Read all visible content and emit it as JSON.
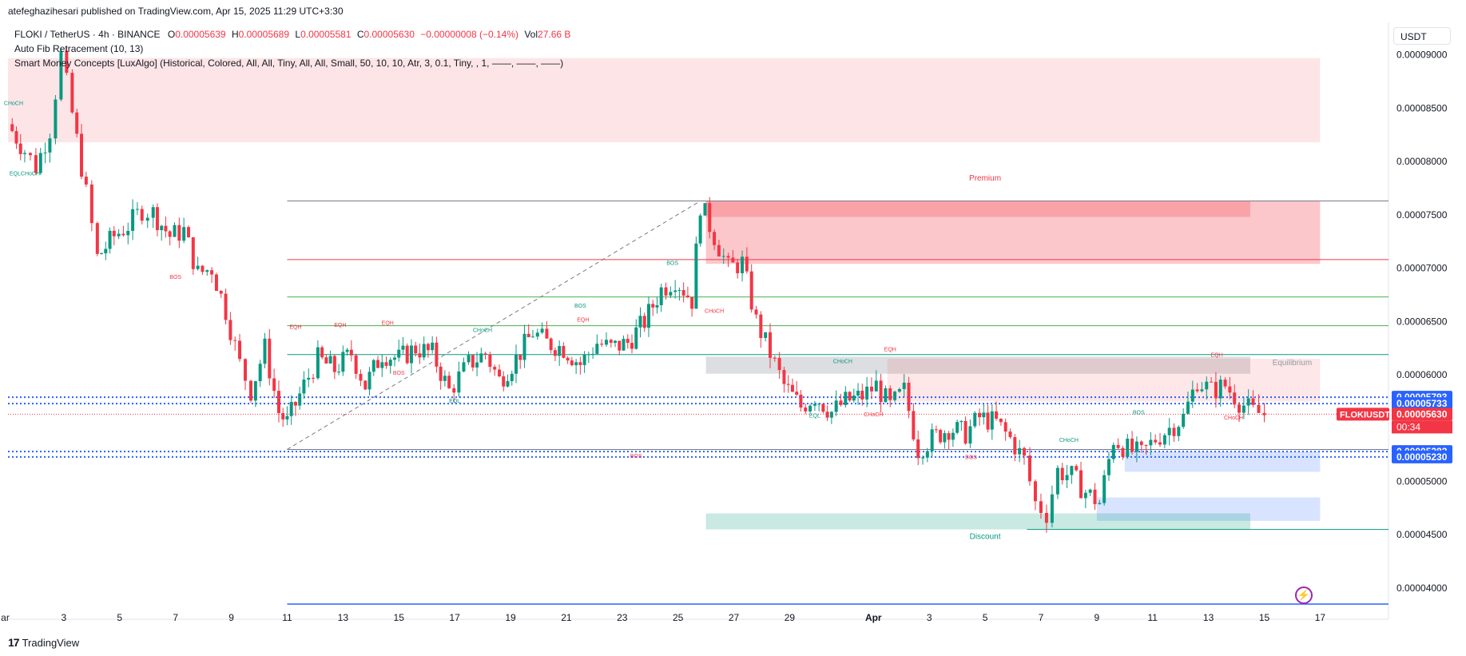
{
  "header": {
    "published": "atefeghazihesari published on TradingView.com, Apr 15, 2025 11:29 UTC+3:30"
  },
  "legend": {
    "symbol": "FLOKI / TetherUS · 4h · BINANCE",
    "o_label": "O",
    "o": "0.00005639",
    "h_label": "H",
    "h": "0.00005689",
    "l_label": "L",
    "l": "0.00005581",
    "c_label": "C",
    "c": "0.00005630",
    "change": "−0.00000008 (−0.14%)",
    "vol_label": "Vol",
    "vol": "27.66 B",
    "indicator1": "Auto Fib Retracement (10, 13)",
    "indicator2": "Smart Money Concepts [LuxAlgo] (Historical, Colored, All, All, Tiny, All, All, Small, 50, 10, 10, Atr, 3, 0.1, Tiny, , 1, ——, ——, ——)"
  },
  "currency": "USDT",
  "footer": {
    "brand": "TradingView",
    "mark": "17"
  },
  "colors": {
    "up": "#089981",
    "down": "#f23645",
    "premium": "#f23645",
    "discount": "#089981",
    "fib_gray": "#787b86",
    "fib_red": "#f23645",
    "fib_green": "#4caf50",
    "fib_teal": "#089981",
    "blue": "#2962ff",
    "price_label": "#f23645"
  },
  "chart_data": {
    "type": "candlestick",
    "ylim": [
      3.82e-05,
      9.08e-05
    ],
    "y_ticks": [
      "0.00009000",
      "0.00008500",
      "0.00008000",
      "0.00007500",
      "0.00007000",
      "0.00006500",
      "0.00006000",
      "0.00005500",
      "0.00005000",
      "0.00004500",
      "0.00004000"
    ],
    "y_tick_values": [
      9e-05,
      8.5e-05,
      8e-05,
      7.5e-05,
      7e-05,
      6.5e-05,
      6e-05,
      5.5e-05,
      5e-05,
      4.5e-05,
      4e-05
    ],
    "x_ticks": [
      {
        "label": "ar",
        "day": 0.9
      },
      {
        "label": "3",
        "day": 3
      },
      {
        "label": "5",
        "day": 5
      },
      {
        "label": "7",
        "day": 7
      },
      {
        "label": "9",
        "day": 9
      },
      {
        "label": "11",
        "day": 11
      },
      {
        "label": "13",
        "day": 13
      },
      {
        "label": "15",
        "day": 15
      },
      {
        "label": "17",
        "day": 17
      },
      {
        "label": "19",
        "day": 19
      },
      {
        "label": "21",
        "day": 21
      },
      {
        "label": "23",
        "day": 23
      },
      {
        "label": "25",
        "day": 25
      },
      {
        "label": "27",
        "day": 27
      },
      {
        "label": "29",
        "day": 29
      },
      {
        "label": "Apr",
        "day": 32
      },
      {
        "label": "3",
        "day": 34
      },
      {
        "label": "5",
        "day": 36
      },
      {
        "label": "7",
        "day": 38
      },
      {
        "label": "9",
        "day": 40
      },
      {
        "label": "11",
        "day": 42
      },
      {
        "label": "13",
        "day": 44
      },
      {
        "label": "15",
        "day": 46
      },
      {
        "label": "17",
        "day": 48
      }
    ],
    "x_domain": [
      1.0,
      48.0
    ],
    "close_path": [
      [
        1.0,
        8.35e-05
      ],
      [
        1.6,
        8.1e-05
      ],
      [
        2.0,
        7.95e-05
      ],
      [
        2.5,
        8.3e-05
      ],
      [
        2.9,
        9e-05
      ],
      [
        3.3,
        8.45e-05
      ],
      [
        3.8,
        7.7e-05
      ],
      [
        4.2,
        7.1e-05
      ],
      [
        4.8,
        7.3e-05
      ],
      [
        5.3,
        7.4e-05
      ],
      [
        5.8,
        7.55e-05
      ],
      [
        6.2,
        7.52e-05
      ],
      [
        6.8,
        7.3e-05
      ],
      [
        7.3,
        7.35e-05
      ],
      [
        7.8,
        6.95e-05
      ],
      [
        8.3,
        7e-05
      ],
      [
        8.8,
        6.6e-05
      ],
      [
        9.3,
        6.1e-05
      ],
      [
        9.7,
        5.85e-05
      ],
      [
        10.2,
        6.25e-05
      ],
      [
        10.7,
        5.65e-05
      ],
      [
        11.0,
        5.55e-05
      ],
      [
        11.6,
        5.9e-05
      ],
      [
        12.1,
        6.15e-05
      ],
      [
        12.7,
        6.05e-05
      ],
      [
        13.3,
        6.2e-05
      ],
      [
        13.8,
        5.9e-05
      ],
      [
        14.4,
        6.2e-05
      ],
      [
        15.0,
        6.15e-05
      ],
      [
        15.6,
        6.25e-05
      ],
      [
        16.2,
        6.2e-05
      ],
      [
        16.8,
        5.85e-05
      ],
      [
        17.5,
        6.1e-05
      ],
      [
        18.1,
        6.2e-05
      ],
      [
        18.6,
        5.95e-05
      ],
      [
        19.2,
        6.15e-05
      ],
      [
        19.8,
        6.4e-05
      ],
      [
        20.3,
        6.3e-05
      ],
      [
        20.9,
        6.25e-05
      ],
      [
        21.5,
        6.1e-05
      ],
      [
        22.1,
        6.3e-05
      ],
      [
        22.6,
        6.25e-05
      ],
      [
        23.2,
        6.3e-05
      ],
      [
        23.8,
        6.5e-05
      ],
      [
        24.4,
        6.8e-05
      ],
      [
        24.9,
        6.9e-05
      ],
      [
        25.5,
        6.7e-05
      ],
      [
        25.8,
        7.6e-05
      ],
      [
        26.3,
        7.3e-05
      ],
      [
        26.8,
        7e-05
      ],
      [
        27.3,
        7.05e-05
      ],
      [
        27.8,
        6.5e-05
      ],
      [
        28.3,
        6.2e-05
      ],
      [
        28.8,
        5.9e-05
      ],
      [
        29.4,
        5.7e-05
      ],
      [
        29.9,
        5.8e-05
      ],
      [
        30.5,
        5.65e-05
      ],
      [
        31.0,
        5.75e-05
      ],
      [
        31.6,
        5.8e-05
      ],
      [
        32.1,
        5.9e-05
      ],
      [
        32.6,
        5.7e-05
      ],
      [
        33.1,
        5.85e-05
      ],
      [
        33.6,
        5.3e-05
      ],
      [
        34.1,
        5.4e-05
      ],
      [
        34.7,
        5.5e-05
      ],
      [
        35.3,
        5.45e-05
      ],
      [
        35.8,
        5.6e-05
      ],
      [
        36.4,
        5.55e-05
      ],
      [
        36.9,
        5.4e-05
      ],
      [
        37.4,
        5.2e-05
      ],
      [
        37.8,
        4.8e-05
      ],
      [
        38.2,
        4.7e-05
      ],
      [
        38.6,
        5.1e-05
      ],
      [
        39.1,
        5.05e-05
      ],
      [
        39.6,
        4.9e-05
      ],
      [
        40.1,
        4.8e-05
      ],
      [
        40.6,
        5.4e-05
      ],
      [
        41.1,
        5.3e-05
      ],
      [
        41.6,
        5.25e-05
      ],
      [
        42.1,
        5.4e-05
      ],
      [
        42.6,
        5.5e-05
      ],
      [
        43.1,
        5.6e-05
      ],
      [
        43.6,
        5.95e-05
      ],
      [
        44.1,
        5.85e-05
      ],
      [
        44.6,
        5.9e-05
      ],
      [
        45.1,
        5.75e-05
      ],
      [
        45.6,
        5.65e-05
      ],
      [
        46.0,
        5.63e-05
      ]
    ],
    "zones": [
      {
        "name": "top-supply",
        "x0": 1.0,
        "x1": 48.0,
        "y0": 8.18e-05,
        "y1": 8.97e-05,
        "color": "#f23645",
        "opacity": 0.13
      },
      {
        "name": "premium",
        "x0": 26.0,
        "x1": 48.0,
        "y0": 7.04e-05,
        "y1": 7.63e-05,
        "color": "#f23645",
        "opacity": 0.28
      },
      {
        "name": "premium-inner",
        "x0": 26.0,
        "x1": 45.5,
        "y0": 7.48e-05,
        "y1": 7.63e-05,
        "color": "#f23645",
        "opacity": 0.25
      },
      {
        "name": "equilibrium",
        "x0": 26.0,
        "x1": 45.5,
        "y0": 6.01e-05,
        "y1": 6.17e-05,
        "color": "#787b86",
        "opacity": 0.25
      },
      {
        "name": "equilibrium-red",
        "x0": 32.5,
        "x1": 48.0,
        "y0": 5.75e-05,
        "y1": 6.15e-05,
        "color": "#f23645",
        "opacity": 0.12
      },
      {
        "name": "demand-blue",
        "x0": 41.0,
        "x1": 48.0,
        "y0": 5.09e-05,
        "y1": 5.28e-05,
        "color": "#2962ff",
        "opacity": 0.18
      },
      {
        "name": "demand-blue-2",
        "x0": 40.0,
        "x1": 48.0,
        "y0": 4.63e-05,
        "y1": 4.85e-05,
        "color": "#2962ff",
        "opacity": 0.18
      },
      {
        "name": "discount",
        "x0": 26.0,
        "x1": 45.5,
        "y0": 4.55e-05,
        "y1": 4.7e-05,
        "color": "#089981",
        "opacity": 0.22
      }
    ],
    "hlines": [
      {
        "y": 7.63e-05,
        "x0": 11.0,
        "x1": 48.0,
        "color": "#787b86",
        "width": 1
      },
      {
        "y": 7.08e-05,
        "x0": 11.0,
        "x1": 48.0,
        "color": "#f23645",
        "width": 1
      },
      {
        "y": 6.73e-05,
        "x0": 11.0,
        "x1": 48.0,
        "color": "#4caf50",
        "width": 1
      },
      {
        "y": 6.46e-05,
        "x0": 11.0,
        "x1": 48.0,
        "color": "#4caf50",
        "width": 1
      },
      {
        "y": 6.19e-05,
        "x0": 11.0,
        "x1": 48.0,
        "color": "#089981",
        "width": 1
      },
      {
        "y": 5.3e-05,
        "x0": 11.0,
        "x1": 48.0,
        "color": "#787b86",
        "width": 1
      },
      {
        "y": 4.55e-05,
        "x0": 37.5,
        "x1": 48.0,
        "color": "#089981",
        "width": 1
      },
      {
        "y": 3.85e-05,
        "x0": 11.0,
        "x1": 48.0,
        "color": "#2962ff",
        "width": 1.5
      }
    ],
    "dotted_lines": [
      {
        "y": 5.79e-05,
        "color": "#2962ff"
      },
      {
        "y": 5.73e-05,
        "color": "#2962ff"
      },
      {
        "y": 5.28e-05,
        "color": "#2962ff"
      },
      {
        "y": 5.23e-05,
        "color": "#2962ff"
      },
      {
        "y": 5.63e-05,
        "color": "#f23645"
      }
    ],
    "fib_diagonal": {
      "x0": 11.0,
      "y0": 5.3e-05,
      "x1": 25.8,
      "y1": 7.63e-05,
      "color": "#787b86"
    },
    "annotations": [
      {
        "text": "Premium",
        "x": 36.0,
        "y": 7.82e-05,
        "color": "#f23645"
      },
      {
        "text": "Equilibrium",
        "x": 47.0,
        "y": 6.09e-05,
        "color": "#9598a1"
      },
      {
        "text": "Discount",
        "x": 36.0,
        "y": 4.46e-05,
        "color": "#089981"
      },
      {
        "text": "BOS",
        "x": 23.5,
        "y": 5.22e-05,
        "color": "#f23645"
      },
      {
        "text": "BOS",
        "x": 7.0,
        "y": 6.9e-05,
        "color": "#f23645"
      },
      {
        "text": "BOS",
        "x": 24.8,
        "y": 7.03e-05,
        "color": "#089981"
      },
      {
        "text": "BOS",
        "x": 21.5,
        "y": 6.63e-05,
        "color": "#089981"
      },
      {
        "text": "BOS",
        "x": 15.0,
        "y": 6e-05,
        "color": "#f23645"
      },
      {
        "text": "BOS",
        "x": 35.5,
        "y": 5.21e-05,
        "color": "#f23645"
      },
      {
        "text": "BOS",
        "x": 41.5,
        "y": 5.63e-05,
        "color": "#089981"
      },
      {
        "text": "CHoCH",
        "x": 1.2,
        "y": 8.53e-05,
        "color": "#089981"
      },
      {
        "text": "EQLCHoCH",
        "x": 1.6,
        "y": 7.87e-05,
        "color": "#089981"
      },
      {
        "text": "CHoCH",
        "x": 18.0,
        "y": 6.4e-05,
        "color": "#089981"
      },
      {
        "text": "CHoCH",
        "x": 26.3,
        "y": 6.58e-05,
        "color": "#f23645"
      },
      {
        "text": "CHoCH",
        "x": 30.9,
        "y": 6.11e-05,
        "color": "#089981"
      },
      {
        "text": "CHoCH",
        "x": 32.0,
        "y": 5.61e-05,
        "color": "#f23645"
      },
      {
        "text": "CHoCH",
        "x": 39.0,
        "y": 5.37e-05,
        "color": "#089981"
      },
      {
        "text": "CHoCH",
        "x": 44.9,
        "y": 5.58e-05,
        "color": "#f23645"
      },
      {
        "text": "EQH",
        "x": 11.3,
        "y": 6.43e-05,
        "color": "#f23645"
      },
      {
        "text": "EQH",
        "x": 12.9,
        "y": 6.45e-05,
        "color": "#f23645"
      },
      {
        "text": "EQH",
        "x": 14.6,
        "y": 6.47e-05,
        "color": "#f23645"
      },
      {
        "text": "EQH",
        "x": 21.6,
        "y": 6.5e-05,
        "color": "#f23645"
      },
      {
        "text": "EQH",
        "x": 32.6,
        "y": 6.22e-05,
        "color": "#f23645"
      },
      {
        "text": "EQH",
        "x": 44.3,
        "y": 6.17e-05,
        "color": "#f23645"
      },
      {
        "text": "EQL",
        "x": 17.0,
        "y": 5.74e-05,
        "color": "#089981"
      },
      {
        "text": "EQL",
        "x": 29.9,
        "y": 5.6e-05,
        "color": "#089981"
      }
    ],
    "price_labels": [
      {
        "text": "0.00005793",
        "y": 5.79e-05,
        "bg": "#2962ff"
      },
      {
        "text": "0.00005733",
        "y": 5.73e-05,
        "bg": "#2962ff"
      },
      {
        "text": "0.00005630",
        "y": 5.63e-05,
        "bg": "#f23645",
        "tag": "FLOKIUSDT",
        "timer": "00:34"
      },
      {
        "text": "0.00005282",
        "y": 5.28e-05,
        "bg": "#2962ff"
      },
      {
        "text": "0.00005230",
        "y": 5.23e-05,
        "bg": "#2962ff"
      }
    ]
  }
}
